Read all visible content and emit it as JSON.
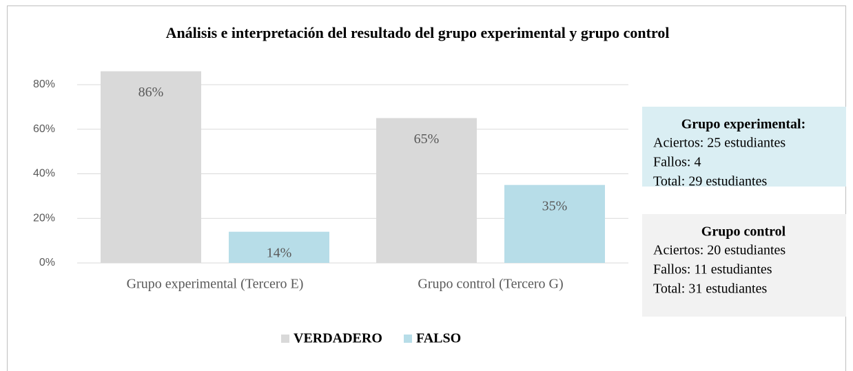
{
  "chart_data": {
    "type": "bar",
    "title": "Análisis e interpretación del resultado del grupo experimental y grupo control",
    "categories": [
      "Grupo experimental (Tercero E)",
      "Grupo control (Tercero G)"
    ],
    "series": [
      {
        "name": "VERDADERO",
        "color": "#d9d9d9",
        "values": [
          86,
          65
        ],
        "value_labels": [
          "86%",
          "65%"
        ]
      },
      {
        "name": "FALSO",
        "color": "#b7dde8",
        "values": [
          14,
          35
        ],
        "value_labels": [
          "14%",
          "35%"
        ]
      }
    ],
    "ylim": [
      0,
      90
    ],
    "yticks": [
      {
        "value": 0,
        "label": "0%"
      },
      {
        "value": 20,
        "label": "20%"
      },
      {
        "value": 40,
        "label": "40%"
      },
      {
        "value": 60,
        "label": "60%"
      },
      {
        "value": 80,
        "label": "80%"
      }
    ],
    "grid": true,
    "legend": "bottom",
    "annotations": [
      {
        "title": "Grupo experimental:",
        "lines": [
          "Aciertos: 25 estudiantes",
          "Fallos: 4",
          "Total: 29 estudiantes"
        ],
        "color": "#daeef3"
      },
      {
        "title": "Grupo control",
        "lines": [
          "Aciertos: 20 estudiantes",
          "Fallos: 11 estudiantes",
          "Total: 31 estudiantes"
        ],
        "color": "#f2f2f2"
      }
    ]
  }
}
